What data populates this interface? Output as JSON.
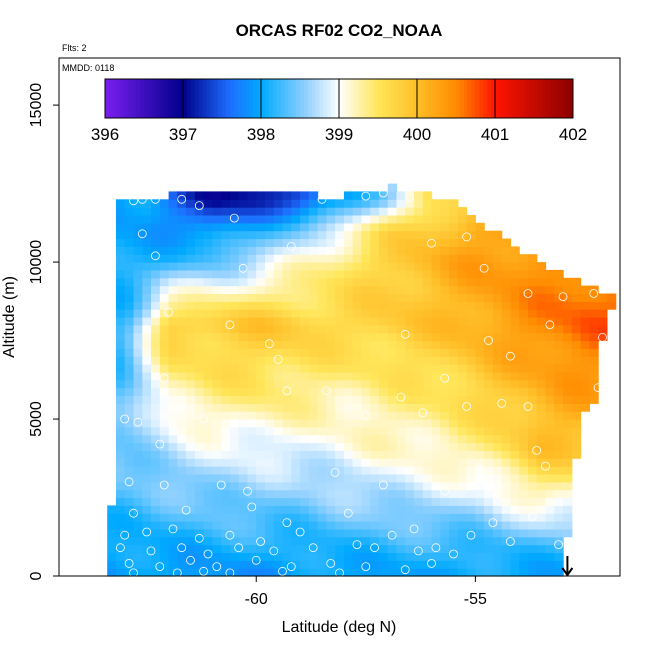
{
  "chart_data": {
    "type": "heatmap",
    "title": "ORCAS RF02 CO2_NOAA",
    "annotations": {
      "flights": "Flts: 2",
      "date": "MMDD: 0118"
    },
    "xlabel": "Latitude (deg N)",
    "ylabel": "Altitude (m)",
    "xlim": [
      -64.5,
      -51.7
    ],
    "ylim": [
      0,
      16500
    ],
    "x_ticks": [
      -60,
      -55
    ],
    "x_tick_labels": [
      "-60",
      "-55"
    ],
    "y_ticks": [
      0,
      5000,
      10000,
      15000
    ],
    "y_tick_labels": [
      "0",
      "5000",
      "10000",
      "15000"
    ],
    "colorbar": {
      "label_values": [
        396,
        397,
        398,
        399,
        400,
        401,
        402
      ],
      "labels": [
        "396",
        "397",
        "398",
        "399",
        "400",
        "401",
        "402"
      ],
      "range": [
        396,
        402
      ],
      "palette": [
        "#7a1ff0",
        "#00008b",
        "#1e90ff",
        "#00bfff",
        "#ffffff",
        "#ffd700",
        "#ffa500",
        "#ff0000",
        "#8b0000"
      ]
    },
    "grid": false,
    "domain_upper_edge": {
      "lat": [
        -62.9,
        -61.0,
        -58.0,
        -56.8,
        -55.6,
        -54.8,
        -54.0,
        -53.2,
        -52.4,
        -52.0,
        -51.8
      ],
      "alt": [
        12000,
        12250,
        12100,
        12400,
        12000,
        11200,
        10400,
        9800,
        9300,
        9000,
        8900
      ]
    },
    "domain_lower_edge": {
      "lat": [
        -63.0,
        -56.0,
        -53.0
      ],
      "alt": [
        0,
        0,
        0
      ]
    },
    "domain_right_edge": {
      "lat": [
        -51.8,
        -52.1,
        -52.2,
        -52.6,
        -53.0
      ],
      "alt": [
        8900,
        7500,
        5800,
        5000,
        0
      ]
    },
    "field_samples": [
      {
        "alt": 12000,
        "lat": [
          -62.5,
          -61.0,
          -59.0,
          -57.0,
          -56.0
        ],
        "co2": [
          397.9,
          397.0,
          397.3,
          398.6,
          399.6
        ]
      },
      {
        "alt": 11000,
        "lat": [
          -63.0,
          -61.0,
          -59.0,
          -57.0,
          -55.0,
          -54.0
        ],
        "co2": [
          398.0,
          397.8,
          398.5,
          399.6,
          400.2,
          400.3
        ]
      },
      {
        "alt": 10000,
        "lat": [
          -63.0,
          -61.0,
          -59.0,
          -57.0,
          -55.0,
          -53.0,
          -52.0
        ],
        "co2": [
          398.0,
          398.4,
          399.1,
          399.8,
          400.3,
          400.5,
          400.6
        ]
      },
      {
        "alt": 8000,
        "lat": [
          -63.0,
          -62.0,
          -60.0,
          -58.0,
          -56.0,
          -54.0,
          -52.5
        ],
        "co2": [
          398.2,
          399.8,
          399.9,
          399.7,
          399.9,
          400.4,
          400.7
        ]
      },
      {
        "alt": 6000,
        "lat": [
          -63.0,
          -62.0,
          -60.0,
          -58.0,
          -56.0,
          -54.0,
          -53.0
        ],
        "co2": [
          398.3,
          399.3,
          399.5,
          399.3,
          399.5,
          400.0,
          400.3
        ]
      },
      {
        "alt": 4000,
        "lat": [
          -63.0,
          -61.0,
          -59.0,
          -57.0,
          -55.0,
          -53.5
        ],
        "co2": [
          398.5,
          398.9,
          398.9,
          399.1,
          399.3,
          399.9
        ]
      },
      {
        "alt": 2500,
        "lat": [
          -63.0,
          -61.0,
          -59.0,
          -57.0,
          -55.0,
          -53.5
        ],
        "co2": [
          398.3,
          398.5,
          398.5,
          398.7,
          398.8,
          399.2
        ]
      },
      {
        "alt": 1000,
        "lat": [
          -63.0,
          -61.0,
          -59.0,
          -57.0,
          -55.0,
          -53.5
        ],
        "co2": [
          398.0,
          398.1,
          398.1,
          398.2,
          398.2,
          398.3
        ]
      },
      {
        "alt": 200,
        "lat": [
          -63.0,
          -60.0,
          -57.0,
          -55.0,
          -54.0
        ],
        "co2": [
          397.9,
          397.9,
          398.0,
          398.0,
          398.0
        ]
      }
    ],
    "sample_points": [
      {
        "lat": -62.8,
        "alt": 11950
      },
      {
        "lat": -62.6,
        "alt": 12000
      },
      {
        "lat": -62.3,
        "alt": 12000
      },
      {
        "lat": -61.7,
        "alt": 12000
      },
      {
        "lat": -61.3,
        "alt": 11800
      },
      {
        "lat": -60.5,
        "alt": 11400
      },
      {
        "lat": -58.5,
        "alt": 12000
      },
      {
        "lat": -57.5,
        "alt": 12100
      },
      {
        "lat": -57.1,
        "alt": 12200
      },
      {
        "lat": -56.5,
        "alt": 12050
      },
      {
        "lat": -62.6,
        "alt": 10900
      },
      {
        "lat": -62.3,
        "alt": 10200
      },
      {
        "lat": -60.3,
        "alt": 9800
      },
      {
        "lat": -59.2,
        "alt": 10500
      },
      {
        "lat": -56.0,
        "alt": 10600
      },
      {
        "lat": -55.2,
        "alt": 10800
      },
      {
        "lat": -54.8,
        "alt": 9800
      },
      {
        "lat": -53.8,
        "alt": 9000
      },
      {
        "lat": -53.0,
        "alt": 8900
      },
      {
        "lat": -52.3,
        "alt": 9000
      },
      {
        "lat": -51.9,
        "alt": 9200
      },
      {
        "lat": -52.1,
        "alt": 7600
      },
      {
        "lat": -53.3,
        "alt": 8000
      },
      {
        "lat": -54.7,
        "alt": 7500
      },
      {
        "lat": -54.2,
        "alt": 7000
      },
      {
        "lat": -62.0,
        "alt": 8400
      },
      {
        "lat": -59.7,
        "alt": 7400
      },
      {
        "lat": -59.5,
        "alt": 6900
      },
      {
        "lat": -60.6,
        "alt": 8000
      },
      {
        "lat": -56.6,
        "alt": 7700
      },
      {
        "lat": -55.7,
        "alt": 6300
      },
      {
        "lat": -54.4,
        "alt": 5500
      },
      {
        "lat": -53.8,
        "alt": 5400
      },
      {
        "lat": -52.2,
        "alt": 6000
      },
      {
        "lat": -62.1,
        "alt": 6300
      },
      {
        "lat": -59.3,
        "alt": 5900
      },
      {
        "lat": -58.4,
        "alt": 5900
      },
      {
        "lat": -57.5,
        "alt": 5100
      },
      {
        "lat": -56.7,
        "alt": 5700
      },
      {
        "lat": -56.2,
        "alt": 5200
      },
      {
        "lat": -55.2,
        "alt": 5400
      },
      {
        "lat": -63.0,
        "alt": 5000
      },
      {
        "lat": -62.7,
        "alt": 4900
      },
      {
        "lat": -61.7,
        "alt": 5600
      },
      {
        "lat": -61.2,
        "alt": 5000
      },
      {
        "lat": -62.2,
        "alt": 4200
      },
      {
        "lat": -62.9,
        "alt": 3000
      },
      {
        "lat": -62.1,
        "alt": 2900
      },
      {
        "lat": -60.8,
        "alt": 2900
      },
      {
        "lat": -60.2,
        "alt": 2700
      },
      {
        "lat": -58.2,
        "alt": 3300
      },
      {
        "lat": -57.1,
        "alt": 2900
      },
      {
        "lat": -55.7,
        "alt": 2700
      },
      {
        "lat": -54.9,
        "alt": 3400
      },
      {
        "lat": -54.5,
        "alt": 2900
      },
      {
        "lat": -53.6,
        "alt": 4000
      },
      {
        "lat": -53.4,
        "alt": 3500
      },
      {
        "lat": -62.8,
        "alt": 2000
      },
      {
        "lat": -61.6,
        "alt": 2100
      },
      {
        "lat": -60.1,
        "alt": 2200
      },
      {
        "lat": -59.3,
        "alt": 1700
      },
      {
        "lat": -57.9,
        "alt": 2000
      },
      {
        "lat": -56.4,
        "alt": 1500
      },
      {
        "lat": -54.6,
        "alt": 1700
      },
      {
        "lat": -53.7,
        "alt": 1900
      },
      {
        "lat": -53.1,
        "alt": 1000
      },
      {
        "lat": -63.0,
        "alt": 1300
      },
      {
        "lat": -62.5,
        "alt": 1400
      },
      {
        "lat": -61.9,
        "alt": 1500
      },
      {
        "lat": -61.3,
        "alt": 1200
      },
      {
        "lat": -60.6,
        "alt": 1300
      },
      {
        "lat": -59.9,
        "alt": 1100
      },
      {
        "lat": -59.0,
        "alt": 1400
      },
      {
        "lat": -57.7,
        "alt": 1000
      },
      {
        "lat": -56.9,
        "alt": 1300
      },
      {
        "lat": -55.9,
        "alt": 900
      },
      {
        "lat": -55.1,
        "alt": 1300
      },
      {
        "lat": -54.2,
        "alt": 1100
      },
      {
        "lat": -63.1,
        "alt": 900
      },
      {
        "lat": -62.4,
        "alt": 800
      },
      {
        "lat": -61.7,
        "alt": 900
      },
      {
        "lat": -61.1,
        "alt": 700
      },
      {
        "lat": -60.4,
        "alt": 900
      },
      {
        "lat": -59.6,
        "alt": 800
      },
      {
        "lat": -58.7,
        "alt": 900
      },
      {
        "lat": -57.3,
        "alt": 900
      },
      {
        "lat": -56.3,
        "alt": 800
      },
      {
        "lat": -55.5,
        "alt": 700
      },
      {
        "lat": -62.9,
        "alt": 400
      },
      {
        "lat": -62.2,
        "alt": 300
      },
      {
        "lat": -61.5,
        "alt": 500
      },
      {
        "lat": -60.9,
        "alt": 300
      },
      {
        "lat": -60.0,
        "alt": 500
      },
      {
        "lat": -59.2,
        "alt": 300
      },
      {
        "lat": -58.3,
        "alt": 400
      },
      {
        "lat": -57.5,
        "alt": 300
      },
      {
        "lat": -56.6,
        "alt": 200
      },
      {
        "lat": -56.0,
        "alt": 400
      },
      {
        "lat": -62.8,
        "alt": 100
      },
      {
        "lat": -61.8,
        "alt": 100
      },
      {
        "lat": -61.2,
        "alt": 150
      },
      {
        "lat": -60.6,
        "alt": 100
      },
      {
        "lat": -59.4,
        "alt": 150
      },
      {
        "lat": -58.1,
        "alt": 100
      }
    ],
    "marker": {
      "symbol": "down-arrow",
      "lat": -52.9,
      "alt": 0
    }
  }
}
